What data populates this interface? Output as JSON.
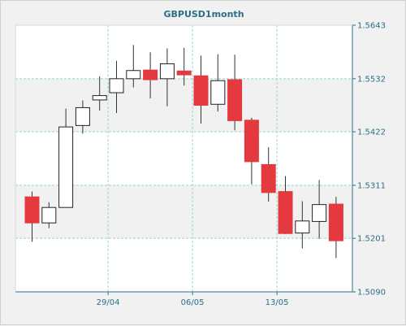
{
  "chart_data": {
    "type": "candlestick",
    "title": "GBPUSD1month",
    "y_axis": {
      "position": "right",
      "ticks": [
        1.5643,
        1.5532,
        1.5422,
        1.5311,
        1.5201,
        1.509
      ],
      "ylim": [
        1.509,
        1.5643
      ]
    },
    "x_axis": {
      "tick_labels": [
        {
          "label": "29/04",
          "index": 5
        },
        {
          "label": "06/05",
          "index": 10
        },
        {
          "label": "13/05",
          "index": 15
        }
      ]
    },
    "grid": true,
    "colors": {
      "up_body": "#ffffff",
      "down_body": "#e3393f",
      "wick": "#333333",
      "grid": "#99d4d4",
      "axis": "#2a6f86",
      "band": "#ffffff",
      "plot_bg": "#f1f1f1"
    },
    "candles": [
      {
        "open": 1.5287,
        "high": 1.5298,
        "low": 1.5194,
        "close": 1.5233
      },
      {
        "open": 1.5233,
        "high": 1.5276,
        "low": 1.5222,
        "close": 1.5265
      },
      {
        "open": 1.5265,
        "high": 1.547,
        "low": 1.5265,
        "close": 1.5432
      },
      {
        "open": 1.5435,
        "high": 1.5487,
        "low": 1.5418,
        "close": 1.5472
      },
      {
        "open": 1.5488,
        "high": 1.5537,
        "low": 1.5466,
        "close": 1.5497
      },
      {
        "open": 1.5503,
        "high": 1.5569,
        "low": 1.5461,
        "close": 1.5532
      },
      {
        "open": 1.5532,
        "high": 1.5602,
        "low": 1.5514,
        "close": 1.5549
      },
      {
        "open": 1.555,
        "high": 1.5587,
        "low": 1.5491,
        "close": 1.553
      },
      {
        "open": 1.5532,
        "high": 1.5595,
        "low": 1.5475,
        "close": 1.5563
      },
      {
        "open": 1.5548,
        "high": 1.5596,
        "low": 1.5518,
        "close": 1.554
      },
      {
        "open": 1.5538,
        "high": 1.558,
        "low": 1.5439,
        "close": 1.5477
      },
      {
        "open": 1.5479,
        "high": 1.5583,
        "low": 1.5464,
        "close": 1.5528
      },
      {
        "open": 1.553,
        "high": 1.5582,
        "low": 1.5425,
        "close": 1.5445
      },
      {
        "open": 1.5446,
        "high": 1.5451,
        "low": 1.5313,
        "close": 1.536
      },
      {
        "open": 1.5354,
        "high": 1.539,
        "low": 1.5277,
        "close": 1.5296
      },
      {
        "open": 1.5298,
        "high": 1.533,
        "low": 1.521,
        "close": 1.5211
      },
      {
        "open": 1.5212,
        "high": 1.5278,
        "low": 1.518,
        "close": 1.5237
      },
      {
        "open": 1.5236,
        "high": 1.5322,
        "low": 1.52,
        "close": 1.5271
      },
      {
        "open": 1.5272,
        "high": 1.5287,
        "low": 1.516,
        "close": 1.5196
      }
    ]
  }
}
